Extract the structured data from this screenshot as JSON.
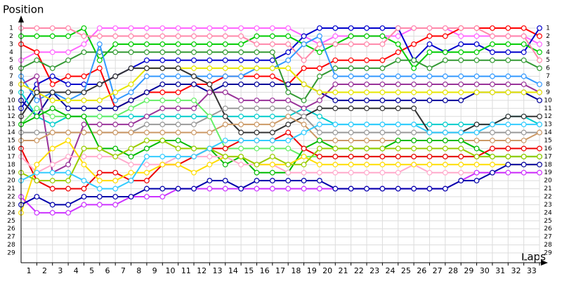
{
  "chart_data": {
    "type": "line",
    "y_label": "Position",
    "x_label": "Laps",
    "x": [
      0,
      1,
      2,
      3,
      4,
      5,
      6,
      7,
      8,
      9,
      10,
      11,
      12,
      13,
      14,
      15,
      16,
      17,
      18,
      19,
      20,
      21,
      22,
      23,
      24,
      25,
      26,
      27,
      28,
      29,
      30,
      31,
      32,
      33
    ],
    "xlim": [
      0,
      33
    ],
    "xticks": [
      1,
      2,
      3,
      4,
      5,
      6,
      7,
      8,
      9,
      10,
      11,
      12,
      13,
      14,
      15,
      16,
      17,
      18,
      19,
      20,
      21,
      22,
      23,
      24,
      25,
      26,
      27,
      28,
      29,
      30,
      31,
      32,
      33
    ],
    "ylim": [
      29,
      1
    ],
    "yticks": [
      1,
      2,
      3,
      4,
      5,
      6,
      7,
      8,
      9,
      10,
      11,
      12,
      13,
      14,
      15,
      16,
      17,
      18,
      19,
      20,
      21,
      22,
      23,
      24,
      25,
      26,
      27,
      28,
      29
    ],
    "grid": true,
    "series": [
      {
        "color": "#ff66ff",
        "values": [
          5,
          4,
          4,
          4,
          3,
          1,
          1,
          1,
          1,
          1,
          1,
          1,
          1,
          1,
          1,
          1,
          1,
          1,
          2,
          3,
          2,
          2,
          2,
          2,
          2,
          1,
          1,
          1,
          2,
          2,
          2,
          2,
          2,
          3
        ]
      },
      {
        "color": "#ff0000",
        "values": [
          3,
          4,
          8,
          7,
          7,
          6,
          11,
          10,
          9,
          9,
          9,
          8,
          8,
          7,
          7,
          7,
          7,
          8,
          6,
          6,
          5,
          5,
          5,
          5,
          4,
          3,
          2,
          2,
          1,
          1,
          1,
          1,
          1,
          2
        ]
      },
      {
        "color": "#0000cc",
        "values": [
          11,
          8,
          7,
          8,
          8,
          8,
          7,
          6,
          5,
          5,
          5,
          5,
          5,
          5,
          5,
          5,
          5,
          4,
          2,
          1,
          1,
          1,
          1,
          1,
          1,
          5,
          3,
          4,
          3,
          3,
          4,
          4,
          4,
          1
        ]
      },
      {
        "color": "#000099",
        "values": [
          10,
          12,
          9,
          11,
          11,
          11,
          11,
          10,
          9,
          8,
          8,
          8,
          9,
          8,
          8,
          8,
          8,
          8,
          8,
          9,
          10,
          10,
          10,
          10,
          10,
          10,
          10,
          10,
          10,
          9,
          9,
          9,
          9,
          10
        ]
      },
      {
        "color": "#00cc00",
        "values": [
          2,
          2,
          2,
          2,
          1,
          5,
          3,
          3,
          3,
          3,
          3,
          3,
          3,
          3,
          3,
          2,
          2,
          2,
          3,
          4,
          3,
          2,
          2,
          2,
          3,
          6,
          4,
          4,
          4,
          4,
          3,
          3,
          3,
          4
        ]
      },
      {
        "color": "#ff88aa",
        "values": [
          1,
          1,
          1,
          1,
          2,
          2,
          2,
          2,
          2,
          2,
          2,
          2,
          2,
          2,
          2,
          3,
          3,
          3,
          5,
          3,
          3,
          3,
          3,
          3,
          1,
          1,
          1,
          1,
          1,
          1,
          2,
          2,
          2,
          5
        ]
      },
      {
        "color": "#339933",
        "values": [
          6,
          5,
          6,
          5,
          4,
          4,
          4,
          4,
          4,
          4,
          4,
          4,
          4,
          4,
          4,
          4,
          4,
          9,
          10,
          7,
          6,
          6,
          6,
          6,
          5,
          5,
          6,
          5,
          5,
          5,
          5,
          5,
          5,
          6
        ]
      },
      {
        "color": "#3399ff",
        "values": [
          7,
          10,
          9,
          10,
          9,
          3,
          10,
          9,
          7,
          7,
          7,
          7,
          7,
          7,
          7,
          6,
          6,
          5,
          3,
          2,
          7,
          7,
          7,
          7,
          7,
          7,
          7,
          7,
          7,
          7,
          7,
          7,
          7,
          8
        ]
      },
      {
        "color": "#00cccc",
        "values": [
          9,
          12,
          13,
          12,
          12,
          12,
          12,
          12,
          12,
          12,
          12,
          12,
          12,
          12,
          12,
          12,
          12,
          12,
          11,
          12,
          13,
          13,
          13,
          13,
          13,
          13,
          13,
          13,
          13,
          13,
          13,
          12,
          12,
          13
        ]
      },
      {
        "color": "#993399",
        "values": [
          8,
          7,
          19,
          18,
          13,
          13,
          13,
          13,
          12,
          11,
          11,
          11,
          9,
          9,
          10,
          10,
          10,
          10,
          11,
          10,
          8,
          8,
          8,
          8,
          8,
          8,
          8,
          8,
          8,
          8,
          8,
          8,
          8,
          9
        ]
      },
      {
        "color": "#e6e600",
        "values": [
          8,
          9,
          10,
          10,
          10,
          10,
          9,
          8,
          6,
          6,
          6,
          6,
          6,
          6,
          6,
          6,
          6,
          6,
          8,
          9,
          9,
          9,
          9,
          9,
          9,
          9,
          9,
          9,
          9,
          9,
          9,
          9,
          9,
          9
        ]
      },
      {
        "color": "#333333",
        "values": [
          12,
          9,
          9,
          9,
          9,
          8,
          7,
          6,
          6,
          6,
          6,
          7,
          8,
          12,
          14,
          14,
          14,
          13,
          12,
          11,
          11,
          11,
          11,
          11,
          11,
          11,
          14,
          14,
          14,
          13,
          13,
          12,
          12,
          12
        ]
      },
      {
        "color": "#999999",
        "values": [
          14,
          14,
          14,
          14,
          14,
          14,
          14,
          14,
          13,
          13,
          13,
          13,
          12,
          11,
          11,
          11,
          11,
          11,
          12,
          14,
          14,
          14,
          14,
          14,
          14,
          14,
          14,
          14,
          14,
          14,
          14,
          14,
          14,
          14
        ]
      },
      {
        "color": "#cc9966",
        "values": [
          15,
          15,
          14,
          14,
          14,
          14,
          14,
          14,
          14,
          14,
          14,
          14,
          14,
          13,
          13,
          13,
          13,
          12,
          13,
          15,
          15,
          15,
          15,
          15,
          15,
          15,
          15,
          15,
          15,
          15,
          15,
          15,
          15,
          14
        ]
      },
      {
        "color": "#66ee66",
        "values": [
          13,
          11,
          12,
          12,
          12,
          12,
          12,
          11,
          10,
          10,
          10,
          10,
          12,
          16,
          16,
          16,
          16,
          16,
          17,
          17,
          17,
          17,
          17,
          17,
          17,
          17,
          17,
          17,
          17,
          17,
          17,
          17,
          17,
          17
        ]
      },
      {
        "color": "#00bb00",
        "values": [
          13,
          12,
          11,
          12,
          12,
          16,
          16,
          17,
          16,
          15,
          15,
          16,
          16,
          18,
          17,
          19,
          19,
          19,
          16,
          15,
          16,
          16,
          16,
          16,
          15,
          15,
          15,
          15,
          15,
          16,
          17,
          17,
          17,
          17
        ]
      },
      {
        "color": "#ee0000",
        "values": [
          16,
          20,
          21,
          21,
          21,
          19,
          19,
          20,
          20,
          18,
          18,
          17,
          16,
          16,
          15,
          15,
          15,
          14,
          16,
          17,
          17,
          17,
          17,
          17,
          17,
          17,
          17,
          17,
          17,
          17,
          16,
          16,
          16,
          16
        ]
      },
      {
        "color": "#ffaacc",
        "values": [
          17,
          19,
          18,
          17,
          17,
          17,
          17,
          18,
          18,
          18,
          17,
          17,
          17,
          17,
          18,
          18,
          18,
          19,
          19,
          19,
          19,
          19,
          19,
          19,
          19,
          18,
          19,
          19,
          19,
          19,
          19,
          19,
          19,
          19
        ]
      },
      {
        "color": "#ffdd00",
        "values": [
          24,
          18,
          16,
          15,
          18,
          20,
          20,
          19,
          19,
          18,
          18,
          19,
          18,
          17,
          17,
          18,
          18,
          18,
          17,
          18,
          18,
          18,
          18,
          18,
          18,
          18,
          18,
          18,
          18,
          18,
          18,
          18,
          18,
          18
        ]
      },
      {
        "color": "#99cc00",
        "values": [
          19,
          20,
          20,
          20,
          16,
          16,
          17,
          16,
          15,
          15,
          16,
          16,
          16,
          17,
          17,
          18,
          17,
          18,
          18,
          16,
          16,
          16,
          16,
          16,
          16,
          16,
          16,
          16,
          16,
          17,
          17,
          17,
          17,
          17
        ]
      },
      {
        "color": "#33ccff",
        "values": [
          20,
          19,
          19,
          19,
          20,
          21,
          21,
          20,
          17,
          17,
          17,
          17,
          16,
          15,
          15,
          15,
          15,
          15,
          14,
          13,
          13,
          13,
          13,
          13,
          13,
          13,
          14,
          14,
          14,
          14,
          13,
          13,
          13,
          13
        ]
      },
      {
        "color": "#cc33ff",
        "values": [
          22,
          24,
          24,
          24,
          23,
          23,
          23,
          22,
          22,
          22,
          21,
          21,
          21,
          21,
          21,
          21,
          21,
          21,
          21,
          21,
          21,
          21,
          21,
          21,
          21,
          21,
          21,
          21,
          20,
          19,
          19,
          19,
          19,
          19
        ]
      },
      {
        "color": "#0000aa",
        "values": [
          23,
          22,
          23,
          23,
          22,
          22,
          22,
          22,
          21,
          21,
          21,
          21,
          20,
          20,
          21,
          20,
          20,
          20,
          20,
          20,
          21,
          21,
          21,
          21,
          21,
          21,
          21,
          21,
          20,
          20,
          19,
          18,
          18,
          18
        ]
      }
    ]
  }
}
